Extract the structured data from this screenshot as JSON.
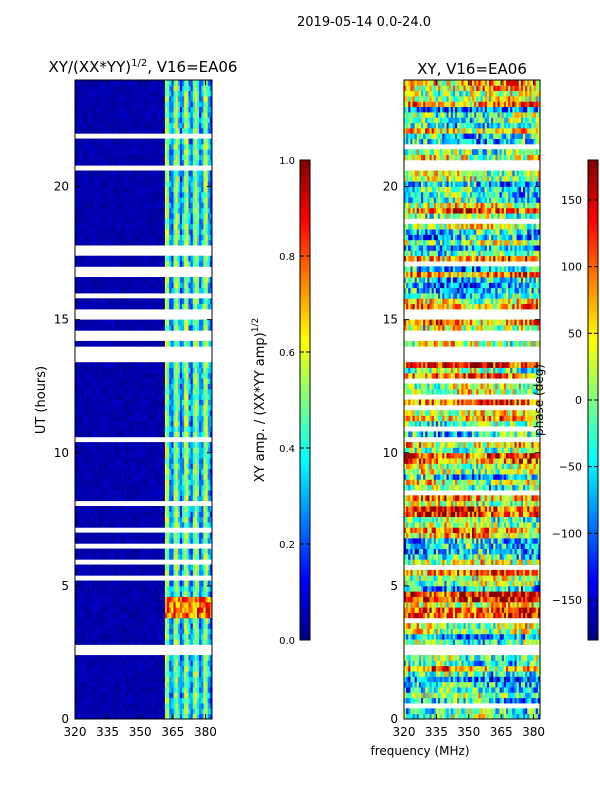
{
  "suptitle": "2019-05-14 0.0-24.0",
  "colors": {
    "jet": [
      "#00007f",
      "#0000ff",
      "#007fff",
      "#00ffff",
      "#7fff7f",
      "#ffff00",
      "#ff7f00",
      "#ff0000",
      "#7f0000"
    ],
    "background": "#ffffff"
  },
  "chart_data": [
    {
      "type": "heatmap",
      "title": "XY/(XX*YY)",
      "title_exponent": "1/2",
      "title_suffix": ", V16=EA06",
      "xlabel": "",
      "ylabel": "UT (hours)",
      "xlim": [
        320,
        383
      ],
      "ylim": [
        0,
        24
      ],
      "xticks": [
        320,
        335,
        350,
        365,
        380
      ],
      "yticks": [
        0,
        5,
        10,
        15,
        20
      ],
      "band_mhz": [
        361,
        382
      ],
      "empty_rows_ut": [
        [
          2.45,
          2.75
        ],
        [
          3.55,
          3.65
        ],
        [
          3.75,
          3.85
        ],
        [
          7.55,
          7.65
        ],
        [
          13.35,
          14.0
        ],
        [
          14.25,
          14.35
        ],
        [
          14.6,
          14.7
        ],
        [
          15.05,
          15.45
        ],
        [
          20.6,
          20.9
        ],
        [
          21.4,
          21.5
        ],
        [
          23.6,
          23.7
        ]
      ],
      "colorbar": {
        "label": "XY amp. / (XX*YY amp)",
        "label_exponent": "1/2",
        "range": [
          0.0,
          1.0
        ],
        "ticks": [
          0.0,
          0.2,
          0.4,
          0.6,
          0.8,
          1.0
        ],
        "tick_labels": [
          "0.0",
          "0.2",
          "0.4",
          "0.6",
          "0.8",
          "1.0"
        ]
      }
    },
    {
      "type": "heatmap",
      "title": "XY, V16=EA06",
      "xlabel": "frequency (MHz)",
      "ylabel": "",
      "xlim": [
        320,
        383
      ],
      "ylim": [
        0,
        24
      ],
      "xticks": [
        320,
        335,
        350,
        365,
        380
      ],
      "yticks": [
        0,
        5,
        10,
        15,
        20
      ],
      "empty_rows_ut": [
        [
          2.45,
          2.75
        ],
        [
          3.55,
          3.65
        ],
        [
          3.75,
          3.85
        ],
        [
          7.55,
          7.65
        ],
        [
          13.35,
          14.0
        ],
        [
          14.25,
          14.35
        ],
        [
          14.6,
          14.7
        ],
        [
          15.05,
          15.45
        ],
        [
          20.6,
          20.9
        ],
        [
          21.4,
          21.5
        ],
        [
          23.6,
          23.7
        ]
      ],
      "colorbar": {
        "label": "phase (deg)",
        "range": [
          -180,
          180
        ],
        "ticks": [
          -150,
          -100,
          -50,
          0,
          50,
          100,
          150
        ],
        "tick_labels": [
          "−150",
          "−100",
          "−50",
          "0",
          "50",
          "100",
          "150"
        ]
      }
    }
  ]
}
